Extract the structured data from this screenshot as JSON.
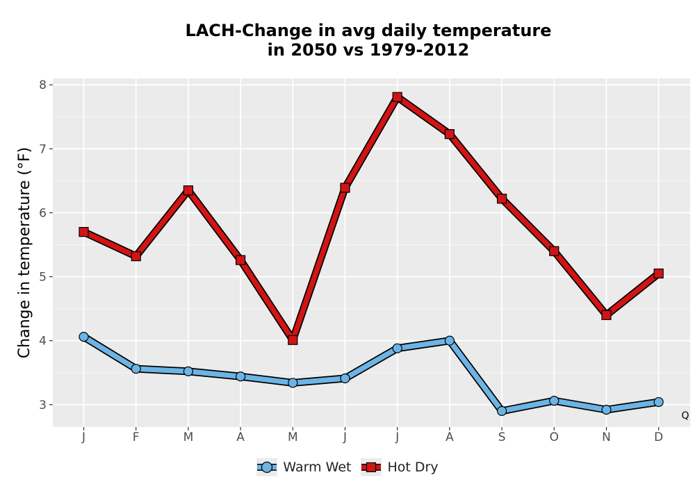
{
  "chart_data": {
    "type": "line",
    "title_lines": [
      "LACH-Change in avg daily temperature",
      "in 2050 vs 1979-2012"
    ],
    "xlabel": "",
    "ylabel": "Change in temperature (°F)",
    "categories": [
      "J",
      "F",
      "M",
      "A",
      "M",
      "J",
      "J",
      "A",
      "S",
      "O",
      "N",
      "D"
    ],
    "yticks": [
      "3",
      "4",
      "5",
      "6",
      "7",
      "8"
    ],
    "ylim": [
      2.65,
      8.1
    ],
    "grid": true,
    "legend_position": "bottom",
    "corner_label": "Q",
    "series": [
      {
        "name": "Warm Wet",
        "marker": "circle",
        "color": "#6cb4e4",
        "values": [
          4.06,
          3.56,
          3.52,
          3.44,
          3.34,
          3.41,
          3.88,
          4.0,
          2.9,
          3.06,
          2.92,
          3.04
        ]
      },
      {
        "name": "Hot Dry",
        "marker": "square",
        "color": "#d11414",
        "values": [
          5.7,
          5.32,
          6.35,
          5.26,
          4.01,
          6.39,
          7.81,
          7.23,
          6.22,
          5.4,
          4.4,
          5.05
        ]
      }
    ]
  }
}
